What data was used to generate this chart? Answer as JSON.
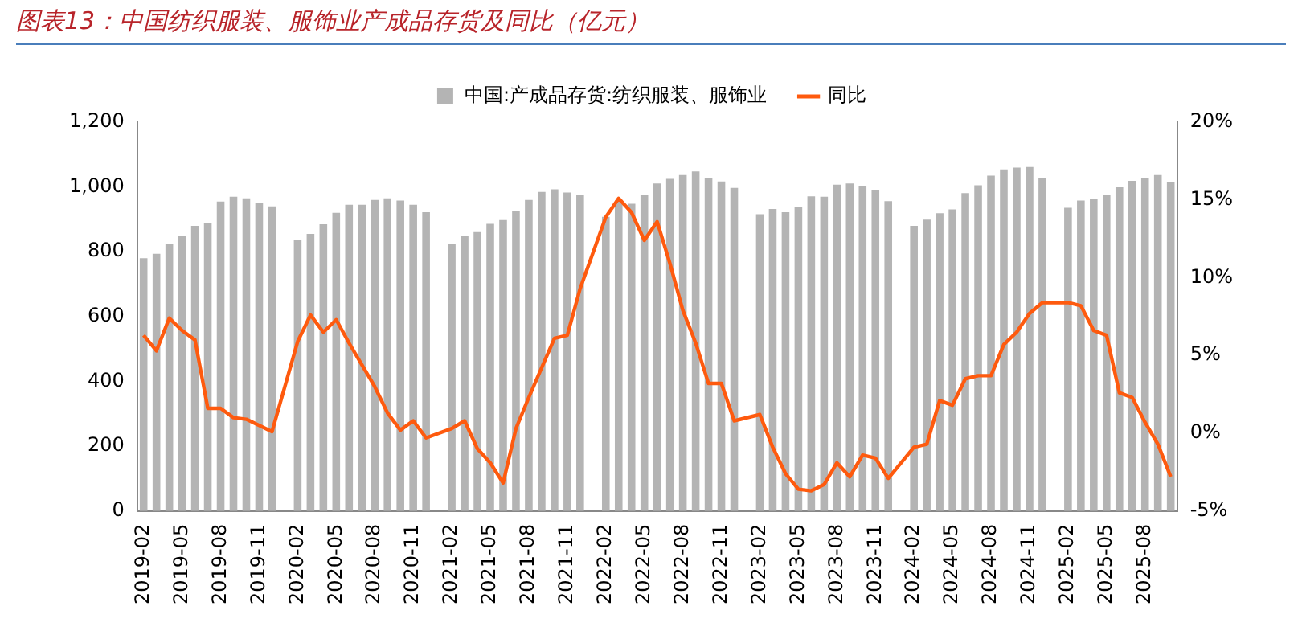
{
  "chart_data": {
    "type": "bar",
    "title": "图表13：中国纺织服装、服饰业产成品存货及同比（亿元）",
    "categories": [
      "2019-02",
      null,
      null,
      "2019-05",
      null,
      null,
      "2019-08",
      null,
      null,
      "2019-11",
      null,
      null,
      "2020-02",
      null,
      null,
      "2020-05",
      null,
      null,
      "2020-08",
      null,
      null,
      "2020-11",
      null,
      null,
      "2021-02",
      null,
      null,
      "2021-05",
      null,
      null,
      "2021-08",
      null,
      null,
      "2021-11",
      null,
      null,
      "2022-02",
      null,
      null,
      "2022-05",
      null,
      null,
      "2022-08",
      null,
      null,
      "2022-11",
      null,
      null,
      "2023-02",
      null,
      null,
      "2023-05",
      null,
      null,
      "2023-08",
      null,
      null,
      "2023-11",
      null,
      null,
      "2024-02",
      null,
      null,
      "2024-05",
      null,
      null,
      "2024-08",
      null,
      null,
      "2024-11",
      null,
      null,
      "2025-02",
      null,
      null,
      "2025-05",
      null,
      null,
      "2025-08",
      null,
      null
    ],
    "series": [
      {
        "name": "中国:产成品存货:纺织服装、服饰业",
        "color": "#b4b4b4",
        "values": [
          780,
          794,
          825,
          850,
          880,
          890,
          955,
          970,
          965,
          950,
          940,
          null,
          838,
          855,
          885,
          920,
          945,
          945,
          960,
          965,
          958,
          945,
          922,
          null,
          825,
          849,
          861,
          886,
          898,
          926,
          960,
          985,
          993,
          983,
          977,
          null,
          908,
          958,
          948,
          977,
          1011,
          1025,
          1037,
          1048,
          1027,
          1017,
          997,
          null,
          916,
          932,
          922,
          938,
          971,
          970,
          1007,
          1011,
          1003,
          991,
          956,
          null,
          880,
          899,
          919,
          931,
          981,
          1005,
          1035,
          1054,
          1060,
          1062,
          1029,
          null,
          936,
          958,
          964,
          977,
          999,
          1019,
          1027,
          1037,
          1015
        ]
      },
      {
        "name": "同比",
        "type": "line",
        "axis": "y2",
        "color": "#fe5a0e",
        "values": [
          6.3,
          5.3,
          7.4,
          6.6,
          6.0,
          1.6,
          1.6,
          1.0,
          0.9,
          0.5,
          0.1,
          null,
          5.9,
          7.6,
          6.5,
          7.3,
          5.8,
          4.4,
          3.0,
          1.3,
          0.2,
          0.8,
          -0.3,
          null,
          0.3,
          0.8,
          -1.0,
          -1.9,
          -3.2,
          0.3,
          2.3,
          4.2,
          6.1,
          6.3,
          9.3,
          null,
          13.9,
          15.1,
          14.2,
          12.4,
          13.6,
          10.9,
          7.9,
          5.8,
          3.2,
          3.2,
          0.8,
          null,
          1.2,
          -0.9,
          -2.6,
          -3.6,
          -3.7,
          -3.3,
          -1.9,
          -2.8,
          -1.4,
          -1.6,
          -2.9,
          null,
          -0.9,
          -0.7,
          2.1,
          1.8,
          3.5,
          3.7,
          3.7,
          5.7,
          6.5,
          7.7,
          8.4,
          null,
          8.4,
          8.2,
          6.6,
          6.3,
          2.6,
          2.3,
          0.7,
          -0.7,
          -2.8
        ]
      }
    ],
    "ylim": [
      0,
      1200
    ],
    "yticks": [
      0,
      200,
      400,
      600,
      800,
      {
        "value": 1000,
        "label": "1,000"
      },
      {
        "value": 1200,
        "label": "1,200"
      }
    ],
    "y2lim": [
      -5,
      20
    ],
    "y2ticks": [
      {
        "value": -5,
        "label": "-5%"
      },
      {
        "value": 0,
        "label": "0%"
      },
      {
        "value": 5,
        "label": "5%"
      },
      {
        "value": 10,
        "label": "10%"
      },
      {
        "value": 15,
        "label": "15%"
      },
      {
        "value": 20,
        "label": "20%"
      }
    ],
    "legend": "top",
    "grid": false
  }
}
